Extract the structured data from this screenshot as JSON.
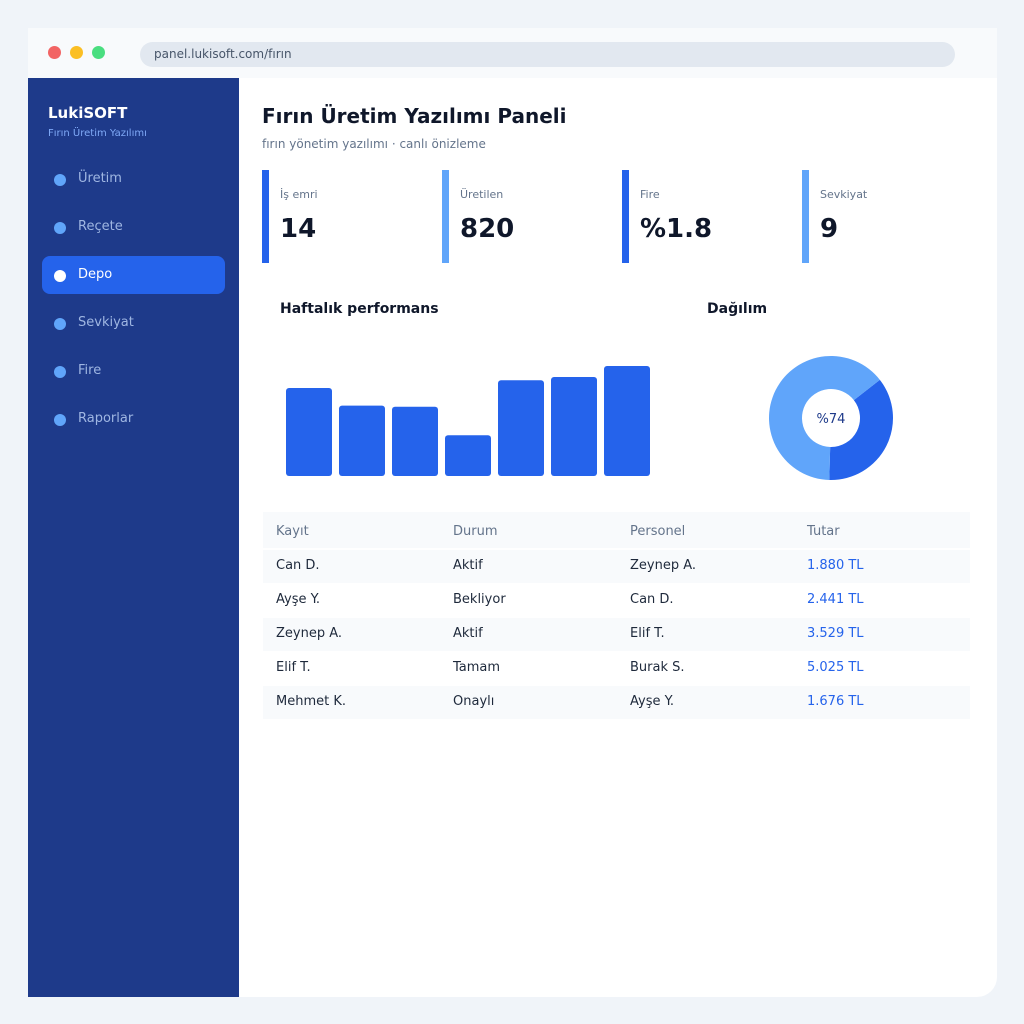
{
  "browser": {
    "url": "panel.lukisoft.com/fırın"
  },
  "sidebar": {
    "brand": "LukiSOFT",
    "brand_sub": "Fırın Üretim Yazılımı",
    "items": [
      {
        "label": "Üretim",
        "active": false
      },
      {
        "label": "Reçete",
        "active": false
      },
      {
        "label": "Depo",
        "active": true
      },
      {
        "label": "Sevkiyat",
        "active": false
      },
      {
        "label": "Fire",
        "active": false
      },
      {
        "label": "Raporlar",
        "active": false
      }
    ]
  },
  "header": {
    "title": "Fırın Üretim Yazılımı Paneli",
    "subtitle": "fırın yönetim yazılımı · canlı önizleme"
  },
  "kpis": [
    {
      "label": "İş emri",
      "value": "14",
      "color": "#2563eb"
    },
    {
      "label": "Üretilen",
      "value": "820",
      "color": "#60a5fa"
    },
    {
      "label": "Fire",
      "value": "%1.8",
      "color": "#2563eb"
    },
    {
      "label": "Sevkiyat",
      "value": "9",
      "color": "#60a5fa"
    }
  ],
  "performance": {
    "title": "Haftalık performans",
    "chart_data": {
      "type": "bar",
      "values": [
        80,
        64,
        63,
        37,
        87,
        90,
        100
      ],
      "ylim": [
        0,
        100
      ],
      "color": "#2563eb"
    }
  },
  "distribution": {
    "title": "Dağılım",
    "center_label": "%74",
    "chart_data": {
      "type": "pie",
      "values": [
        36,
        64
      ],
      "colors": [
        "#2563eb",
        "#60a5fa"
      ]
    }
  },
  "table": {
    "headers": [
      "Kayıt",
      "Durum",
      "Personel",
      "Tutar"
    ],
    "rows": [
      [
        "Can D.",
        "Aktif",
        "Zeynep A.",
        "1.880 TL"
      ],
      [
        "Ayşe Y.",
        "Bekliyor",
        "Can D.",
        "2.441 TL"
      ],
      [
        "Zeynep A.",
        "Aktif",
        "Elif T.",
        "3.529 TL"
      ],
      [
        "Elif T.",
        "Tamam",
        "Burak S.",
        "5.025 TL"
      ],
      [
        "Mehmet K.",
        "Onaylı",
        "Ayşe Y.",
        "1.676 TL"
      ]
    ]
  }
}
